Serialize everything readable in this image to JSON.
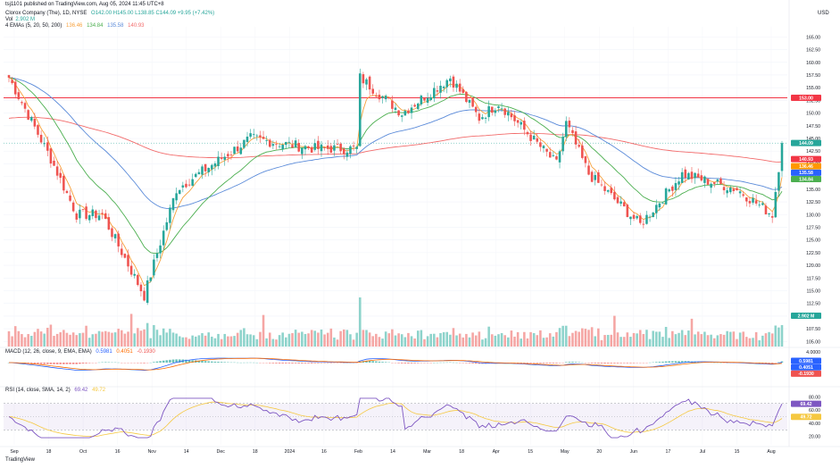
{
  "header": {
    "published": "tsj1101 published on TradingView.com, Aug 05, 2024 11:45 UTC+8",
    "symbol": "Clorox Company (The), 1D, NYSE",
    "ohlc": "O142.00 H145.00 L138.85 C144.09 +9.95 (+7.42%)",
    "vol_label": "Vol",
    "vol_value": "2.902 M",
    "ema_label": "4 EMAs (5, 20, 50, 200)",
    "ema_values": [
      "136.46",
      "134.84",
      "135.58",
      "140.93"
    ],
    "macd_label": "MACD (12, 26, close, 9, EMA, EMA)",
    "macd_values": [
      "0.5981",
      "0.4051",
      "-0.1930"
    ],
    "rsi_label": "RSI (14, close, SMA, 14, 2)",
    "rsi_values": [
      "69.42",
      "49.72"
    ]
  },
  "currency": "USD",
  "footer": "TradingView",
  "colors": {
    "up": "#26a69a",
    "down": "#ef5350",
    "ema5": "#f7a03b",
    "ema20": "#4caf50",
    "ema50": "#5b8bd9",
    "ema200": "#f26b6b",
    "hline": "#f23645",
    "macd": "#2962ff",
    "signal": "#ff6d00",
    "rsi": "#7e57c2",
    "rsi_ma": "#f5c840"
  },
  "chart_data": [
    {
      "type": "candlestick",
      "title": "Clorox Company (The), 1D, NYSE",
      "yticks": [
        "165.00",
        "162.50",
        "160.00",
        "157.50",
        "155.00",
        "152.50",
        "150.00",
        "147.50",
        "145.00",
        "142.50",
        "140.00",
        "137.50",
        "135.00",
        "132.50",
        "130.00",
        "127.50",
        "125.00",
        "122.50",
        "120.00",
        "117.50",
        "115.00",
        "112.50",
        "110.00",
        "107.50",
        "105.00"
      ],
      "ylim": [
        104,
        167
      ],
      "xticks": [
        "Sep",
        "18",
        "Oct",
        "16",
        "Nov",
        "14",
        "Dec",
        "18",
        "2024",
        "16",
        "Feb",
        "14",
        "Mar",
        "18",
        "Apr",
        "15",
        "May",
        "20",
        "Jun",
        "17",
        "Jul",
        "15",
        "Aug"
      ],
      "key_points": [
        {
          "date": "2023-09-01",
          "close": 157
        },
        {
          "date": "2023-09-20",
          "close": 141
        },
        {
          "date": "2023-10-02",
          "close": 130
        },
        {
          "date": "2023-10-12",
          "close": 130
        },
        {
          "date": "2023-10-31",
          "close": 114
        },
        {
          "date": "2023-11-14",
          "close": 135
        },
        {
          "date": "2023-12-15",
          "close": 145
        },
        {
          "date": "2024-01-12",
          "close": 143
        },
        {
          "date": "2024-01-31",
          "close": 143
        },
        {
          "date": "2024-02-01",
          "close": 157
        },
        {
          "date": "2024-02-20",
          "close": 150
        },
        {
          "date": "2024-03-12",
          "close": 157
        },
        {
          "date": "2024-03-25",
          "close": 149
        },
        {
          "date": "2024-04-02",
          "close": 152
        },
        {
          "date": "2024-04-26",
          "close": 140
        },
        {
          "date": "2024-05-01",
          "close": 148
        },
        {
          "date": "2024-05-10",
          "close": 138
        },
        {
          "date": "2024-06-03",
          "close": 128
        },
        {
          "date": "2024-06-20",
          "close": 138
        },
        {
          "date": "2024-07-15",
          "close": 135
        },
        {
          "date": "2024-07-30",
          "close": 130
        },
        {
          "date": "2024-08-02",
          "close": 144.09
        }
      ],
      "horizontal_line": 153.0,
      "price_tags": [
        {
          "label": "153.00",
          "value": 153.0,
          "color": "#f23645"
        },
        {
          "label": "144.09",
          "value": 144.09,
          "color": "#26a69a"
        },
        {
          "label": "140.93",
          "value": 140.93,
          "color": "#f23645"
        },
        {
          "label": "136.46",
          "value": 136.46,
          "color": "#ff9800"
        },
        {
          "label": "135.58",
          "value": 135.58,
          "color": "#2962ff"
        },
        {
          "label": "134.84",
          "value": 134.84,
          "color": "#4caf50"
        }
      ]
    },
    {
      "type": "bar",
      "title": "Vol",
      "last_label": "2.902 M"
    },
    {
      "type": "line",
      "title": "MACD (12, 26, close, 9, EMA, EMA)",
      "yticks": [
        "4.0000"
      ],
      "tags": [
        "0.5981",
        "0.4051",
        "-0.1930"
      ]
    },
    {
      "type": "line",
      "title": "RSI (14, close, SMA, 14, 2)",
      "yticks": [
        "80.00",
        "60.00",
        "40.00",
        "20.00"
      ],
      "ylim": [
        0,
        100
      ],
      "tags": [
        "69.42",
        "49.72"
      ]
    }
  ]
}
